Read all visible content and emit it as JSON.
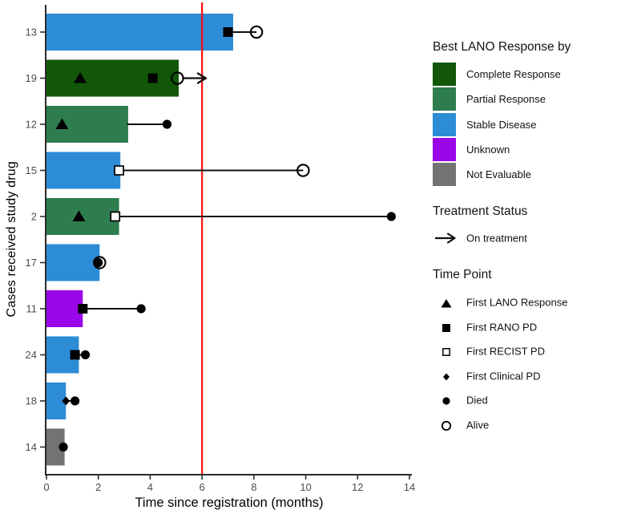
{
  "chart_data": {
    "type": "bar",
    "subtype": "swimmer-plot",
    "orientation": "horizontal",
    "title": "",
    "xlabel": "Time since registration (months)",
    "ylabel": "Cases received study drug",
    "xlim": [
      0,
      14
    ],
    "xticks": [
      0,
      2,
      4,
      6,
      8,
      10,
      12,
      14
    ],
    "grid": false,
    "reference_line": {
      "x": 6,
      "color": "#FB1010"
    },
    "response_colors": {
      "Complete Response": "#115707",
      "Partial Response": "#2E7D4F",
      "Stable Disease": "#2D8CD6",
      "Unknown": "#9A06E8",
      "Not Evaluable": "#737373"
    },
    "categories": [
      "13",
      "19",
      "12",
      "15",
      "2",
      "17",
      "11",
      "24",
      "18",
      "14"
    ],
    "cases": [
      {
        "id": "13",
        "response": "Stable Disease",
        "bar_end": 7.2,
        "segment": [
          7.0,
          8.1
        ],
        "events": [
          {
            "type": "first_rano_pd",
            "x": 7.0
          },
          {
            "type": "alive",
            "x": 8.1
          }
        ]
      },
      {
        "id": "19",
        "response": "Complete Response",
        "bar_end": 5.1,
        "arrow": [
          5.05,
          6.15
        ],
        "events": [
          {
            "type": "first_lano_response",
            "x": 1.3
          },
          {
            "type": "first_rano_pd",
            "x": 4.1
          },
          {
            "type": "alive",
            "x": 5.05
          }
        ]
      },
      {
        "id": "12",
        "response": "Partial Response",
        "bar_end": 3.15,
        "segment": [
          3.1,
          4.65
        ],
        "events": [
          {
            "type": "first_lano_response",
            "x": 0.6
          },
          {
            "type": "died",
            "x": 4.65
          }
        ]
      },
      {
        "id": "15",
        "response": "Stable Disease",
        "bar_end": 2.85,
        "segment": [
          2.8,
          9.9
        ],
        "events": [
          {
            "type": "first_recist_pd",
            "x": 2.8
          },
          {
            "type": "alive",
            "x": 9.9
          }
        ]
      },
      {
        "id": "2",
        "response": "Partial Response",
        "bar_end": 2.8,
        "segment": [
          2.65,
          13.3
        ],
        "events": [
          {
            "type": "first_lano_response",
            "x": 1.25
          },
          {
            "type": "first_recist_pd",
            "x": 2.65
          },
          {
            "type": "died",
            "x": 13.3
          }
        ]
      },
      {
        "id": "17",
        "response": "Stable Disease",
        "bar_end": 2.05,
        "events": [
          {
            "type": "alive",
            "x": 2.05
          },
          {
            "type": "died",
            "x": 2.0
          }
        ]
      },
      {
        "id": "11",
        "response": "Unknown",
        "bar_end": 1.4,
        "segment": [
          1.4,
          3.65
        ],
        "events": [
          {
            "type": "first_rano_pd",
            "x": 1.4
          },
          {
            "type": "died",
            "x": 3.65
          }
        ]
      },
      {
        "id": "24",
        "response": "Stable Disease",
        "bar_end": 1.25,
        "segment": [
          1.1,
          1.5
        ],
        "events": [
          {
            "type": "first_rano_pd",
            "x": 1.1
          },
          {
            "type": "died",
            "x": 1.5
          }
        ]
      },
      {
        "id": "18",
        "response": "Stable Disease",
        "bar_end": 0.75,
        "segment": [
          0.75,
          1.1
        ],
        "events": [
          {
            "type": "first_clinical_pd",
            "x": 0.75
          },
          {
            "type": "died",
            "x": 1.1
          }
        ]
      },
      {
        "id": "14",
        "response": "Not Evaluable",
        "bar_end": 0.7,
        "events": [
          {
            "type": "died",
            "x": 0.65
          }
        ]
      }
    ]
  },
  "axes": {
    "xlabel": "Time since registration (months)",
    "ylabel": "Cases received study drug"
  },
  "legend": {
    "response": {
      "title": "Best LANO Response by",
      "items": [
        {
          "label": "Complete Response",
          "color": "#115707"
        },
        {
          "label": "Partial Response",
          "color": "#2E7D4F"
        },
        {
          "label": "Stable Disease",
          "color": "#2D8CD6"
        },
        {
          "label": "Unknown",
          "color": "#9A06E8"
        },
        {
          "label": "Not Evaluable",
          "color": "#737373"
        }
      ]
    },
    "treatment": {
      "title": "Treatment Status",
      "items": [
        {
          "label": "On treatment",
          "symbol": "arrow-right-icon"
        }
      ]
    },
    "timepoint": {
      "title": "Time Point",
      "items": [
        {
          "label": "First LANO Response",
          "symbol": "triangle-filled"
        },
        {
          "label": "First RANO PD",
          "symbol": "square-filled"
        },
        {
          "label": "First RECIST PD",
          "symbol": "square-open"
        },
        {
          "label": "First Clinical PD",
          "symbol": "diamond-filled"
        },
        {
          "label": "Died",
          "symbol": "circle-filled"
        },
        {
          "label": "Alive",
          "symbol": "circle-open"
        }
      ]
    }
  }
}
